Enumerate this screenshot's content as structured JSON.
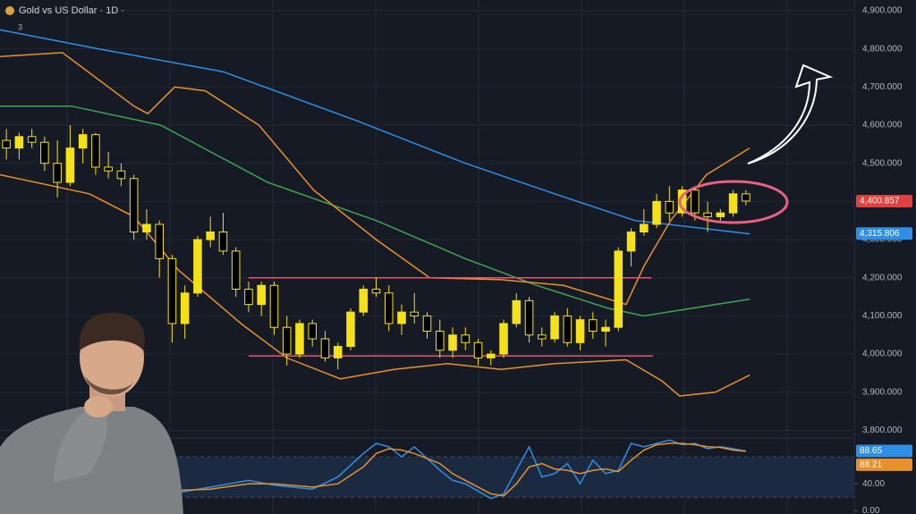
{
  "chart_data": [
    {
      "type": "candlestick",
      "title": "Gold vs US Dollar · 1D ·",
      "indicators": 3,
      "up_color": "#f5e11a",
      "down_color": "#000000",
      "open": [
        4560,
        4540,
        4570,
        4555,
        4500,
        4450,
        4540,
        4575,
        4490,
        4480,
        4460,
        4320,
        4340,
        4250,
        4080,
        4160,
        4300,
        4320,
        4270,
        4170,
        4130,
        4180,
        4070,
        4000,
        4080,
        4040,
        3990,
        4020,
        4110,
        4170,
        4160,
        4080,
        4110,
        4100,
        4060,
        4010,
        4050,
        4030,
        3990,
        4000,
        4080,
        4140,
        4050,
        4040,
        4100,
        4030,
        4090,
        4060,
        4070,
        4270,
        4320,
        4340,
        4400,
        4370,
        4430,
        4370,
        4360,
        4370,
        4420
      ],
      "high": [
        4590,
        4580,
        4590,
        4570,
        4560,
        4600,
        4590,
        4580,
        4530,
        4500,
        4470,
        4380,
        4350,
        4260,
        4180,
        4310,
        4360,
        4370,
        4280,
        4190,
        4190,
        4190,
        4100,
        4090,
        4090,
        4060,
        4030,
        4120,
        4180,
        4200,
        4180,
        4130,
        4160,
        4110,
        4090,
        4070,
        4070,
        4040,
        4010,
        4090,
        4160,
        4150,
        4070,
        4110,
        4120,
        4100,
        4110,
        4090,
        4280,
        4330,
        4380,
        4420,
        4440,
        4440,
        4440,
        4400,
        4380,
        4430,
        4430
      ],
      "low": [
        4510,
        4510,
        4540,
        4480,
        4410,
        4440,
        4500,
        4470,
        4460,
        4440,
        4300,
        4300,
        4200,
        4030,
        4040,
        4150,
        4280,
        4260,
        4150,
        4110,
        4100,
        4050,
        3970,
        3990,
        4020,
        3980,
        3960,
        4010,
        4100,
        4150,
        4060,
        4050,
        4080,
        4040,
        3990,
        3990,
        4010,
        3970,
        3970,
        3990,
        4070,
        4030,
        4020,
        4030,
        4020,
        4010,
        4040,
        4020,
        4060,
        4230,
        4310,
        4330,
        4350,
        4360,
        4350,
        4320,
        4350,
        4360,
        4390
      ],
      "close": [
        4540,
        4570,
        4555,
        4500,
        4450,
        4540,
        4575,
        4490,
        4480,
        4460,
        4320,
        4340,
        4250,
        4080,
        4160,
        4300,
        4320,
        4270,
        4170,
        4130,
        4180,
        4070,
        4000,
        4080,
        4040,
        3990,
        4020,
        4110,
        4170,
        4160,
        4080,
        4110,
        4100,
        4060,
        4010,
        4050,
        4030,
        3990,
        4000,
        4080,
        4140,
        4050,
        4040,
        4100,
        4030,
        4090,
        4060,
        4070,
        4270,
        4320,
        4340,
        4400,
        4370,
        4430,
        4370,
        4360,
        4370,
        4420,
        4401
      ],
      "xlim": [
        -0.5,
        66.5
      ],
      "ylim": [
        3780,
        4928
      ],
      "yticks": [
        {
          "value": 3800,
          "label": "3,800.000"
        },
        {
          "value": 3900,
          "label": "3,900.000"
        },
        {
          "value": 4000,
          "label": "4,000.000"
        },
        {
          "value": 4100,
          "label": "4,100.000"
        },
        {
          "value": 4200,
          "label": "4,200.000"
        },
        {
          "value": 4300,
          "label": "4,300.000"
        },
        {
          "value": 4400,
          "label": "4,400.000"
        },
        {
          "value": 4500,
          "label": "4,500.000"
        },
        {
          "value": 4600,
          "label": "4,600.000"
        },
        {
          "value": 4700,
          "label": "4,700.000"
        },
        {
          "value": 4800,
          "label": "4,800.000"
        },
        {
          "value": 4900,
          "label": "4,900.000"
        }
      ],
      "grid": true,
      "lines": [
        {
          "color": "#2f8ee5",
          "x": [
            -0.5,
            7.2,
            17.0,
            27.6,
            36.0,
            43.0,
            49.3,
            58.3
          ],
          "values": [
            4850,
            4800,
            4740,
            4610,
            4500,
            4420,
            4350,
            4315
          ]
        },
        {
          "color": "#3fa452",
          "x": [
            -0.5,
            5.1,
            12.1,
            20.5,
            29.0,
            36.0,
            41.6,
            47.2,
            50.0,
            58.3
          ],
          "values": [
            4650,
            4650,
            4600,
            4450,
            4350,
            4250,
            4180,
            4120,
            4100,
            4144
          ]
        },
        {
          "color": "#e8902b",
          "x": [
            -0.5,
            4.4,
            10.0,
            11.1,
            13.2,
            15.6,
            19.8,
            24.1,
            29.0,
            33.2,
            38.8,
            43.7,
            48.6,
            50.0,
            52.1,
            54.9,
            58.3
          ],
          "values": [
            4780,
            4790,
            4650,
            4630,
            4700,
            4690,
            4600,
            4430,
            4300,
            4200,
            4195,
            4180,
            4130,
            4230,
            4350,
            4470,
            4540
          ]
        },
        {
          "color": "#e8902b",
          "x": [
            -0.5,
            6.5,
            10.0,
            13.5,
            18.4,
            22.0,
            26.2,
            30.4,
            34.6,
            38.8,
            43.0,
            48.6,
            51.4,
            52.8,
            55.6,
            58.3
          ],
          "values": [
            4470,
            4420,
            4360,
            4220,
            4080,
            3990,
            3935,
            3960,
            3975,
            3960,
            3975,
            3985,
            3930,
            3890,
            3900,
            3945
          ]
        }
      ],
      "levels": [
        {
          "value": 4200,
          "x": [
            19.0,
            50.6
          ],
          "color": "#e0566e"
        },
        {
          "value": 3995,
          "x": [
            19.0,
            50.7
          ],
          "color": "#e0566e"
        }
      ],
      "price_tags": [
        {
          "value": 4400.857,
          "label": "4,400.857",
          "color": "#e0413f"
        },
        {
          "value": 4315.806,
          "label": "4,315.806",
          "color": "#2f8ee5"
        }
      ]
    },
    {
      "type": "line",
      "xlim": [
        -0.5,
        66.5
      ],
      "ylim": [
        -5,
        108
      ],
      "yticks": [
        {
          "value": 40,
          "label": "40.00"
        },
        {
          "value": 0,
          "label": "0.00"
        }
      ],
      "band": [
        20,
        80
      ],
      "series": [
        {
          "color": "#2f8ee5",
          "x": [
            13,
            16,
            19,
            21,
            24,
            26,
            28,
            29,
            30,
            31,
            32,
            34,
            35,
            36,
            38,
            39,
            40,
            41,
            42,
            43,
            44,
            45,
            46,
            47,
            48,
            49,
            50,
            51,
            52,
            53,
            54,
            55,
            56,
            57,
            58
          ],
          "values": [
            25,
            35,
            45,
            38,
            32,
            50,
            85,
            100,
            95,
            80,
            95,
            60,
            45,
            40,
            18,
            25,
            60,
            95,
            50,
            55,
            70,
            40,
            75,
            55,
            60,
            100,
            95,
            100,
            105,
            98,
            100,
            92,
            95,
            92,
            88.65
          ]
        },
        {
          "color": "#e8902b",
          "x": [
            13,
            16,
            19,
            21,
            24,
            26,
            28,
            29,
            30,
            31,
            32,
            34,
            35,
            36,
            38,
            39,
            40,
            41,
            42,
            43,
            44,
            45,
            46,
            47,
            48,
            49,
            50,
            51,
            52,
            53,
            54,
            55,
            56,
            57,
            58
          ],
          "values": [
            30,
            32,
            40,
            40,
            35,
            40,
            65,
            85,
            92,
            90,
            85,
            70,
            55,
            45,
            25,
            22,
            40,
            65,
            70,
            62,
            60,
            55,
            60,
            62,
            58,
            75,
            90,
            98,
            100,
            100,
            98,
            95,
            94,
            90,
            88.21
          ]
        }
      ],
      "value_tags": [
        {
          "value": 88.65,
          "label": "88.65",
          "color": "#2f8ee5"
        },
        {
          "value": 88.21,
          "label": "88.21",
          "color": "#e8902b"
        }
      ]
    }
  ]
}
